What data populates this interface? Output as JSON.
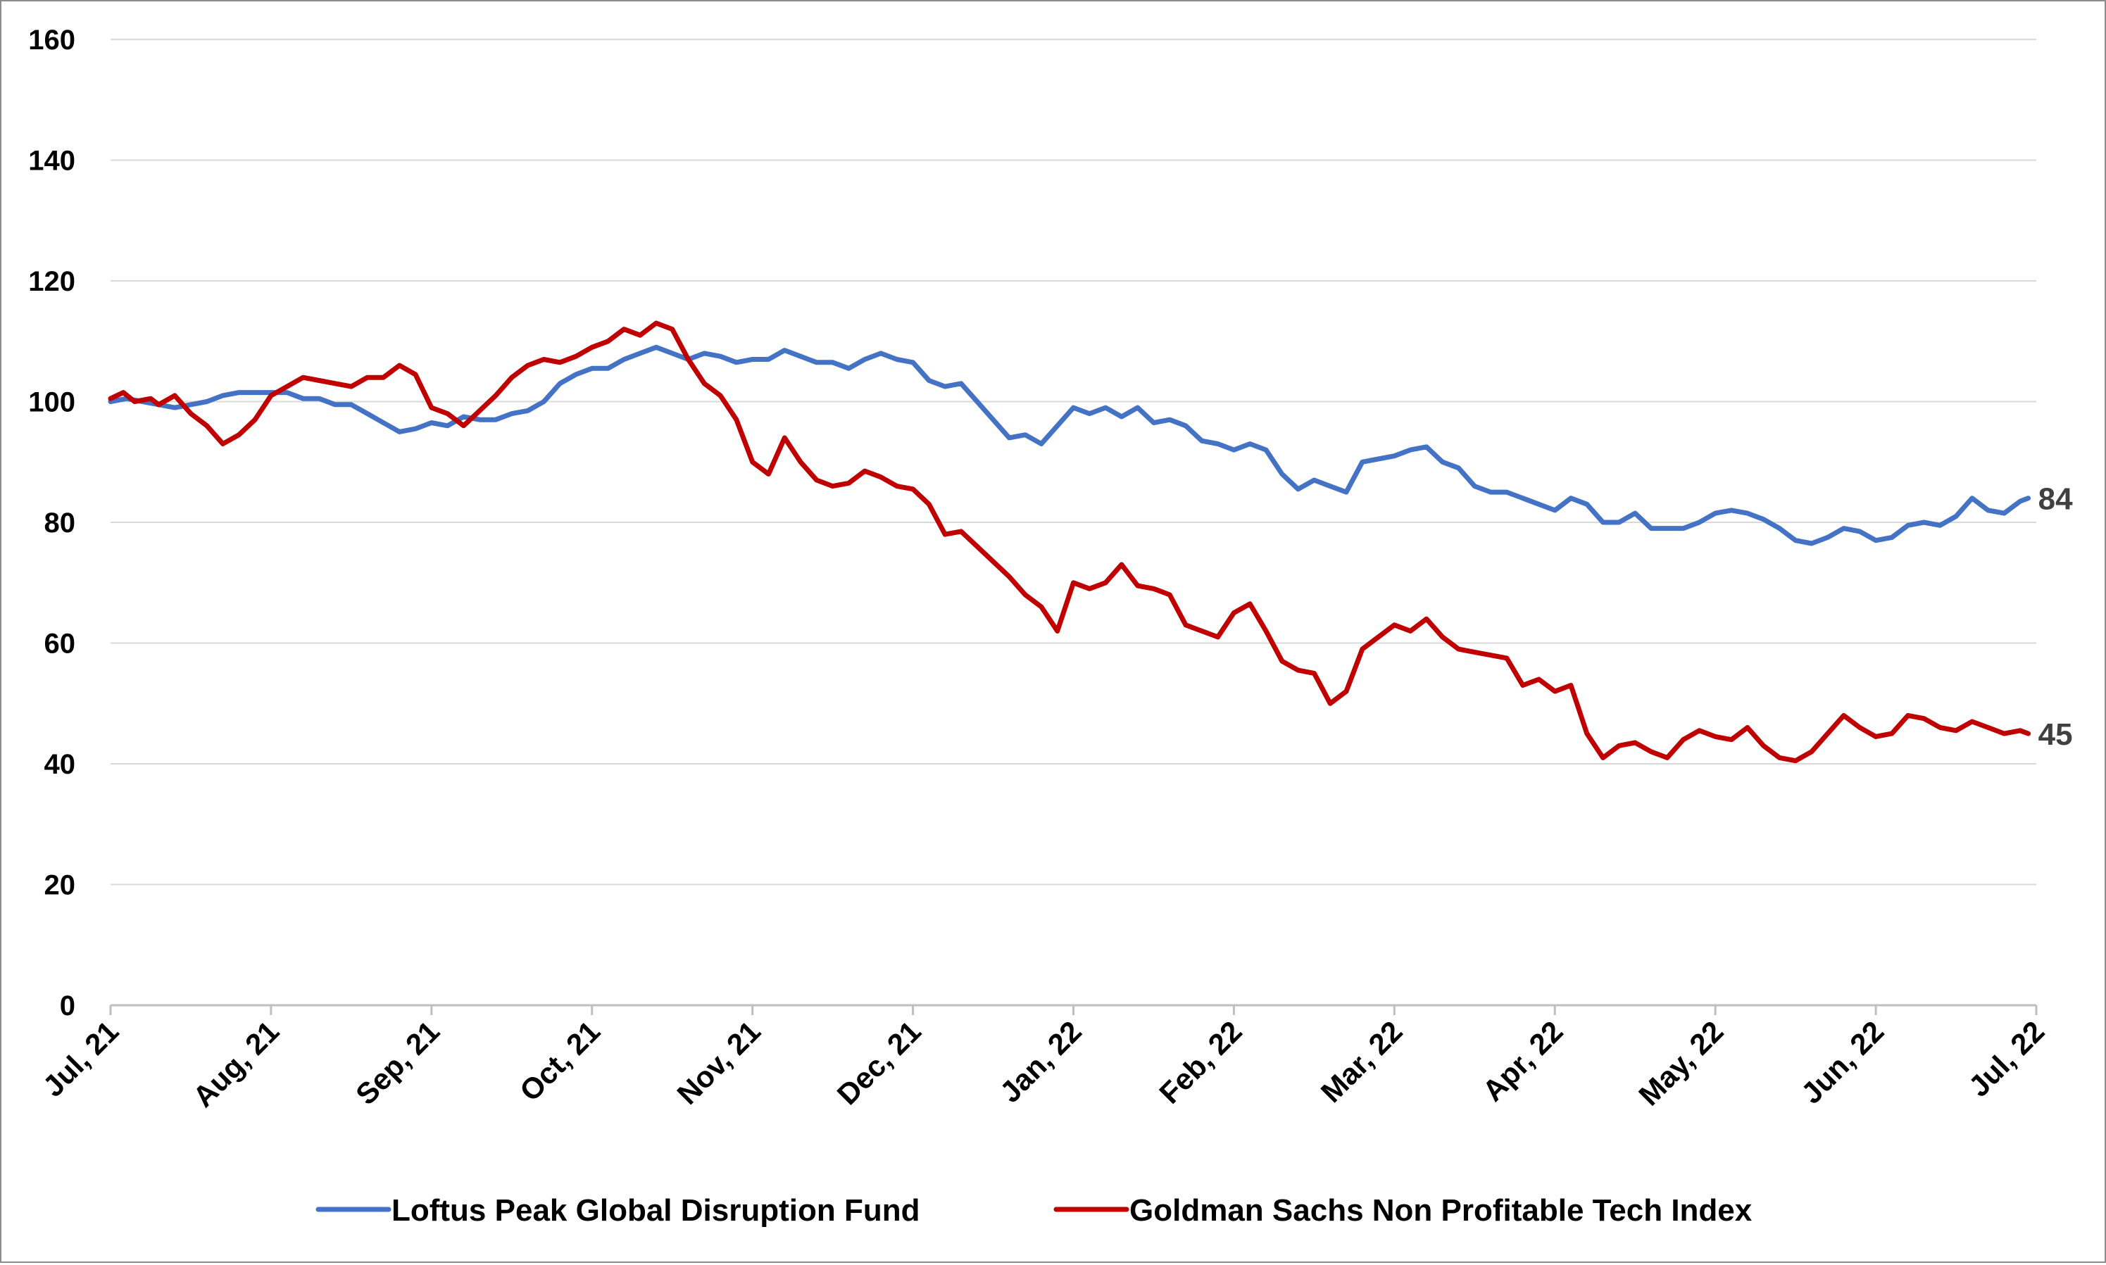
{
  "chart_data": {
    "type": "line",
    "title": "",
    "xlabel": "",
    "ylabel": "",
    "ylim": [
      0,
      160
    ],
    "yticks": [
      0,
      20,
      40,
      60,
      80,
      100,
      120,
      140,
      160
    ],
    "x_categories": [
      "Jul, 21",
      "Aug, 21",
      "Sep, 21",
      "Oct, 21",
      "Nov, 21",
      "Dec, 21",
      "Jan, 22",
      "Feb, 22",
      "Mar, 22",
      "Apr, 22",
      "May, 22",
      "Jun, 22",
      "Jul, 22"
    ],
    "grid": "horizontal",
    "legend_position": "bottom",
    "series": [
      {
        "name": "Loftus Peak Global Disruption Fund",
        "color": "#4472C4",
        "end_label": "84",
        "points": [
          [
            0,
            100
          ],
          [
            0.1,
            100.5
          ],
          [
            0.2,
            100
          ],
          [
            0.3,
            99.5
          ],
          [
            0.4,
            99
          ],
          [
            0.5,
            99.5
          ],
          [
            0.6,
            100
          ],
          [
            0.7,
            101
          ],
          [
            0.8,
            101.5
          ],
          [
            0.9,
            101.5
          ],
          [
            1.0,
            101.5
          ],
          [
            1.1,
            101.5
          ],
          [
            1.2,
            100.5
          ],
          [
            1.3,
            100.5
          ],
          [
            1.4,
            99.5
          ],
          [
            1.5,
            99.5
          ],
          [
            1.6,
            98
          ],
          [
            1.7,
            96.5
          ],
          [
            1.8,
            95
          ],
          [
            1.9,
            95.5
          ],
          [
            2.0,
            96.5
          ],
          [
            2.1,
            96
          ],
          [
            2.2,
            97.5
          ],
          [
            2.3,
            97
          ],
          [
            2.4,
            97
          ],
          [
            2.5,
            98
          ],
          [
            2.6,
            98.5
          ],
          [
            2.7,
            100
          ],
          [
            2.8,
            103
          ],
          [
            2.9,
            104.5
          ],
          [
            3.0,
            105.5
          ],
          [
            3.1,
            105.5
          ],
          [
            3.2,
            107
          ],
          [
            3.3,
            108
          ],
          [
            3.4,
            109
          ],
          [
            3.5,
            108
          ],
          [
            3.6,
            107
          ],
          [
            3.7,
            108
          ],
          [
            3.8,
            107.5
          ],
          [
            3.9,
            106.5
          ],
          [
            4.0,
            107
          ],
          [
            4.1,
            107
          ],
          [
            4.2,
            108.5
          ],
          [
            4.3,
            107.5
          ],
          [
            4.4,
            106.5
          ],
          [
            4.5,
            106.5
          ],
          [
            4.6,
            105.5
          ],
          [
            4.7,
            107
          ],
          [
            4.8,
            108
          ],
          [
            4.9,
            107
          ],
          [
            5.0,
            106.5
          ],
          [
            5.1,
            103.5
          ],
          [
            5.2,
            102.5
          ],
          [
            5.3,
            103
          ],
          [
            5.4,
            100
          ],
          [
            5.5,
            97
          ],
          [
            5.6,
            94
          ],
          [
            5.7,
            94.5
          ],
          [
            5.8,
            93
          ],
          [
            5.9,
            96
          ],
          [
            6.0,
            99
          ],
          [
            6.1,
            98
          ],
          [
            6.2,
            99
          ],
          [
            6.3,
            97.5
          ],
          [
            6.4,
            99
          ],
          [
            6.5,
            96.5
          ],
          [
            6.6,
            97
          ],
          [
            6.7,
            96
          ],
          [
            6.8,
            93.5
          ],
          [
            6.9,
            93
          ],
          [
            7.0,
            92
          ],
          [
            7.1,
            93
          ],
          [
            7.2,
            92
          ],
          [
            7.3,
            88
          ],
          [
            7.4,
            85.5
          ],
          [
            7.5,
            87
          ],
          [
            7.6,
            86
          ],
          [
            7.7,
            85
          ],
          [
            7.8,
            90
          ],
          [
            7.9,
            90.5
          ],
          [
            8.0,
            91
          ],
          [
            8.1,
            92
          ],
          [
            8.2,
            92.5
          ],
          [
            8.3,
            90
          ],
          [
            8.4,
            89
          ],
          [
            8.5,
            86
          ],
          [
            8.6,
            85
          ],
          [
            8.7,
            85
          ],
          [
            8.8,
            84
          ],
          [
            8.9,
            83
          ],
          [
            9.0,
            82
          ],
          [
            9.1,
            84
          ],
          [
            9.2,
            83
          ],
          [
            9.3,
            80
          ],
          [
            9.4,
            80
          ],
          [
            9.5,
            81.5
          ],
          [
            9.6,
            79
          ],
          [
            9.7,
            79
          ],
          [
            9.8,
            79
          ],
          [
            9.9,
            80
          ],
          [
            10.0,
            81.5
          ],
          [
            10.1,
            82
          ],
          [
            10.2,
            81.5
          ],
          [
            10.3,
            80.5
          ],
          [
            10.4,
            79
          ],
          [
            10.5,
            77
          ],
          [
            10.6,
            76.5
          ],
          [
            10.7,
            77.5
          ],
          [
            10.8,
            79
          ],
          [
            10.9,
            78.5
          ],
          [
            11.0,
            77
          ],
          [
            11.1,
            77.5
          ],
          [
            11.2,
            79.5
          ],
          [
            11.3,
            80
          ],
          [
            11.4,
            79.5
          ],
          [
            11.5,
            81
          ],
          [
            11.6,
            84
          ],
          [
            11.7,
            82
          ],
          [
            11.8,
            81.5
          ],
          [
            11.9,
            83.5
          ],
          [
            11.95,
            84
          ]
        ]
      },
      {
        "name": "Goldman Sachs Non Profitable Tech Index",
        "color": "#C00000",
        "end_label": "45",
        "points": [
          [
            0,
            100.5
          ],
          [
            0.08,
            101.5
          ],
          [
            0.15,
            100
          ],
          [
            0.25,
            100.5
          ],
          [
            0.3,
            99.5
          ],
          [
            0.4,
            101
          ],
          [
            0.5,
            98
          ],
          [
            0.6,
            96
          ],
          [
            0.7,
            93
          ],
          [
            0.8,
            94.5
          ],
          [
            0.9,
            97
          ],
          [
            1.0,
            101
          ],
          [
            1.1,
            102.5
          ],
          [
            1.2,
            104
          ],
          [
            1.3,
            103.5
          ],
          [
            1.4,
            103
          ],
          [
            1.5,
            102.5
          ],
          [
            1.6,
            104
          ],
          [
            1.7,
            104
          ],
          [
            1.8,
            106
          ],
          [
            1.9,
            104.5
          ],
          [
            2.0,
            99
          ],
          [
            2.1,
            98
          ],
          [
            2.2,
            96
          ],
          [
            2.3,
            98.5
          ],
          [
            2.4,
            101
          ],
          [
            2.5,
            104
          ],
          [
            2.6,
            106
          ],
          [
            2.7,
            107
          ],
          [
            2.8,
            106.5
          ],
          [
            2.9,
            107.5
          ],
          [
            3.0,
            109
          ],
          [
            3.1,
            110
          ],
          [
            3.2,
            112
          ],
          [
            3.3,
            111
          ],
          [
            3.4,
            113
          ],
          [
            3.5,
            112
          ],
          [
            3.6,
            107
          ],
          [
            3.7,
            103
          ],
          [
            3.8,
            101
          ],
          [
            3.9,
            97
          ],
          [
            4.0,
            90
          ],
          [
            4.1,
            88
          ],
          [
            4.2,
            94
          ],
          [
            4.3,
            90
          ],
          [
            4.4,
            87
          ],
          [
            4.5,
            86
          ],
          [
            4.6,
            86.5
          ],
          [
            4.7,
            88.5
          ],
          [
            4.8,
            87.5
          ],
          [
            4.9,
            86
          ],
          [
            5.0,
            85.5
          ],
          [
            5.1,
            83
          ],
          [
            5.2,
            78
          ],
          [
            5.3,
            78.5
          ],
          [
            5.4,
            76
          ],
          [
            5.5,
            73.5
          ],
          [
            5.6,
            71
          ],
          [
            5.7,
            68
          ],
          [
            5.8,
            66
          ],
          [
            5.9,
            62
          ],
          [
            6.0,
            70
          ],
          [
            6.1,
            69
          ],
          [
            6.2,
            70
          ],
          [
            6.3,
            73
          ],
          [
            6.4,
            69.5
          ],
          [
            6.5,
            69
          ],
          [
            6.6,
            68
          ],
          [
            6.7,
            63
          ],
          [
            6.8,
            62
          ],
          [
            6.9,
            61
          ],
          [
            7.0,
            65
          ],
          [
            7.1,
            66.5
          ],
          [
            7.2,
            62
          ],
          [
            7.3,
            57
          ],
          [
            7.4,
            55.5
          ],
          [
            7.5,
            55
          ],
          [
            7.6,
            50
          ],
          [
            7.7,
            52
          ],
          [
            7.8,
            59
          ],
          [
            7.9,
            61
          ],
          [
            8.0,
            63
          ],
          [
            8.1,
            62
          ],
          [
            8.2,
            64
          ],
          [
            8.3,
            61
          ],
          [
            8.4,
            59
          ],
          [
            8.5,
            58.5
          ],
          [
            8.6,
            58
          ],
          [
            8.7,
            57.5
          ],
          [
            8.8,
            53
          ],
          [
            8.9,
            54
          ],
          [
            9.0,
            52
          ],
          [
            9.1,
            53
          ],
          [
            9.2,
            45
          ],
          [
            9.3,
            41
          ],
          [
            9.4,
            43
          ],
          [
            9.5,
            43.5
          ],
          [
            9.6,
            42
          ],
          [
            9.7,
            41
          ],
          [
            9.8,
            44
          ],
          [
            9.9,
            45.5
          ],
          [
            10.0,
            44.5
          ],
          [
            10.1,
            44
          ],
          [
            10.2,
            46
          ],
          [
            10.3,
            43
          ],
          [
            10.4,
            41
          ],
          [
            10.5,
            40.5
          ],
          [
            10.6,
            42
          ],
          [
            10.7,
            45
          ],
          [
            10.8,
            48
          ],
          [
            10.9,
            46
          ],
          [
            11.0,
            44.5
          ],
          [
            11.1,
            45
          ],
          [
            11.2,
            48
          ],
          [
            11.3,
            47.5
          ],
          [
            11.4,
            46
          ],
          [
            11.5,
            45.5
          ],
          [
            11.6,
            47
          ],
          [
            11.7,
            46
          ],
          [
            11.8,
            45
          ],
          [
            11.9,
            45.5
          ],
          [
            11.95,
            45
          ]
        ]
      }
    ]
  }
}
